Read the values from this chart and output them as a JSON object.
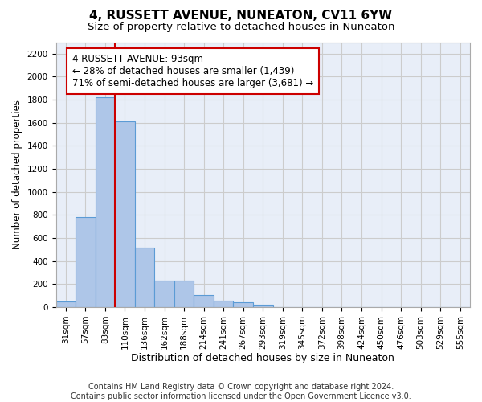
{
  "title": "4, RUSSETT AVENUE, NUNEATON, CV11 6YW",
  "subtitle": "Size of property relative to detached houses in Nuneaton",
  "xlabel": "Distribution of detached houses by size in Nuneaton",
  "ylabel": "Number of detached properties",
  "footer_line1": "Contains HM Land Registry data © Crown copyright and database right 2024.",
  "footer_line2": "Contains public sector information licensed under the Open Government Licence v3.0.",
  "categories": [
    "31sqm",
    "57sqm",
    "83sqm",
    "110sqm",
    "136sqm",
    "162sqm",
    "188sqm",
    "214sqm",
    "241sqm",
    "267sqm",
    "293sqm",
    "319sqm",
    "345sqm",
    "372sqm",
    "398sqm",
    "424sqm",
    "450sqm",
    "476sqm",
    "503sqm",
    "529sqm",
    "555sqm"
  ],
  "bar_values": [
    50,
    780,
    1820,
    1610,
    520,
    230,
    230,
    107,
    55,
    40,
    25,
    0,
    0,
    0,
    0,
    0,
    0,
    0,
    0,
    0,
    0
  ],
  "bar_color": "#aec6e8",
  "bar_edge_color": "#5b9bd5",
  "property_line_x": 2.5,
  "property_line_color": "#cc0000",
  "annotation_box_text": "4 RUSSETT AVENUE: 93sqm\n← 28% of detached houses are smaller (1,439)\n71% of semi-detached houses are larger (3,681) →",
  "annotation_box_edge_color": "#cc0000",
  "ylim": [
    0,
    2300
  ],
  "yticks": [
    0,
    200,
    400,
    600,
    800,
    1000,
    1200,
    1400,
    1600,
    1800,
    2000,
    2200
  ],
  "grid_color": "#cccccc",
  "background_color": "#e8eef8",
  "title_fontsize": 11,
  "subtitle_fontsize": 9.5,
  "tick_fontsize": 7.5,
  "ylabel_fontsize": 8.5,
  "xlabel_fontsize": 9,
  "annotation_fontsize": 8.5,
  "footer_fontsize": 7
}
